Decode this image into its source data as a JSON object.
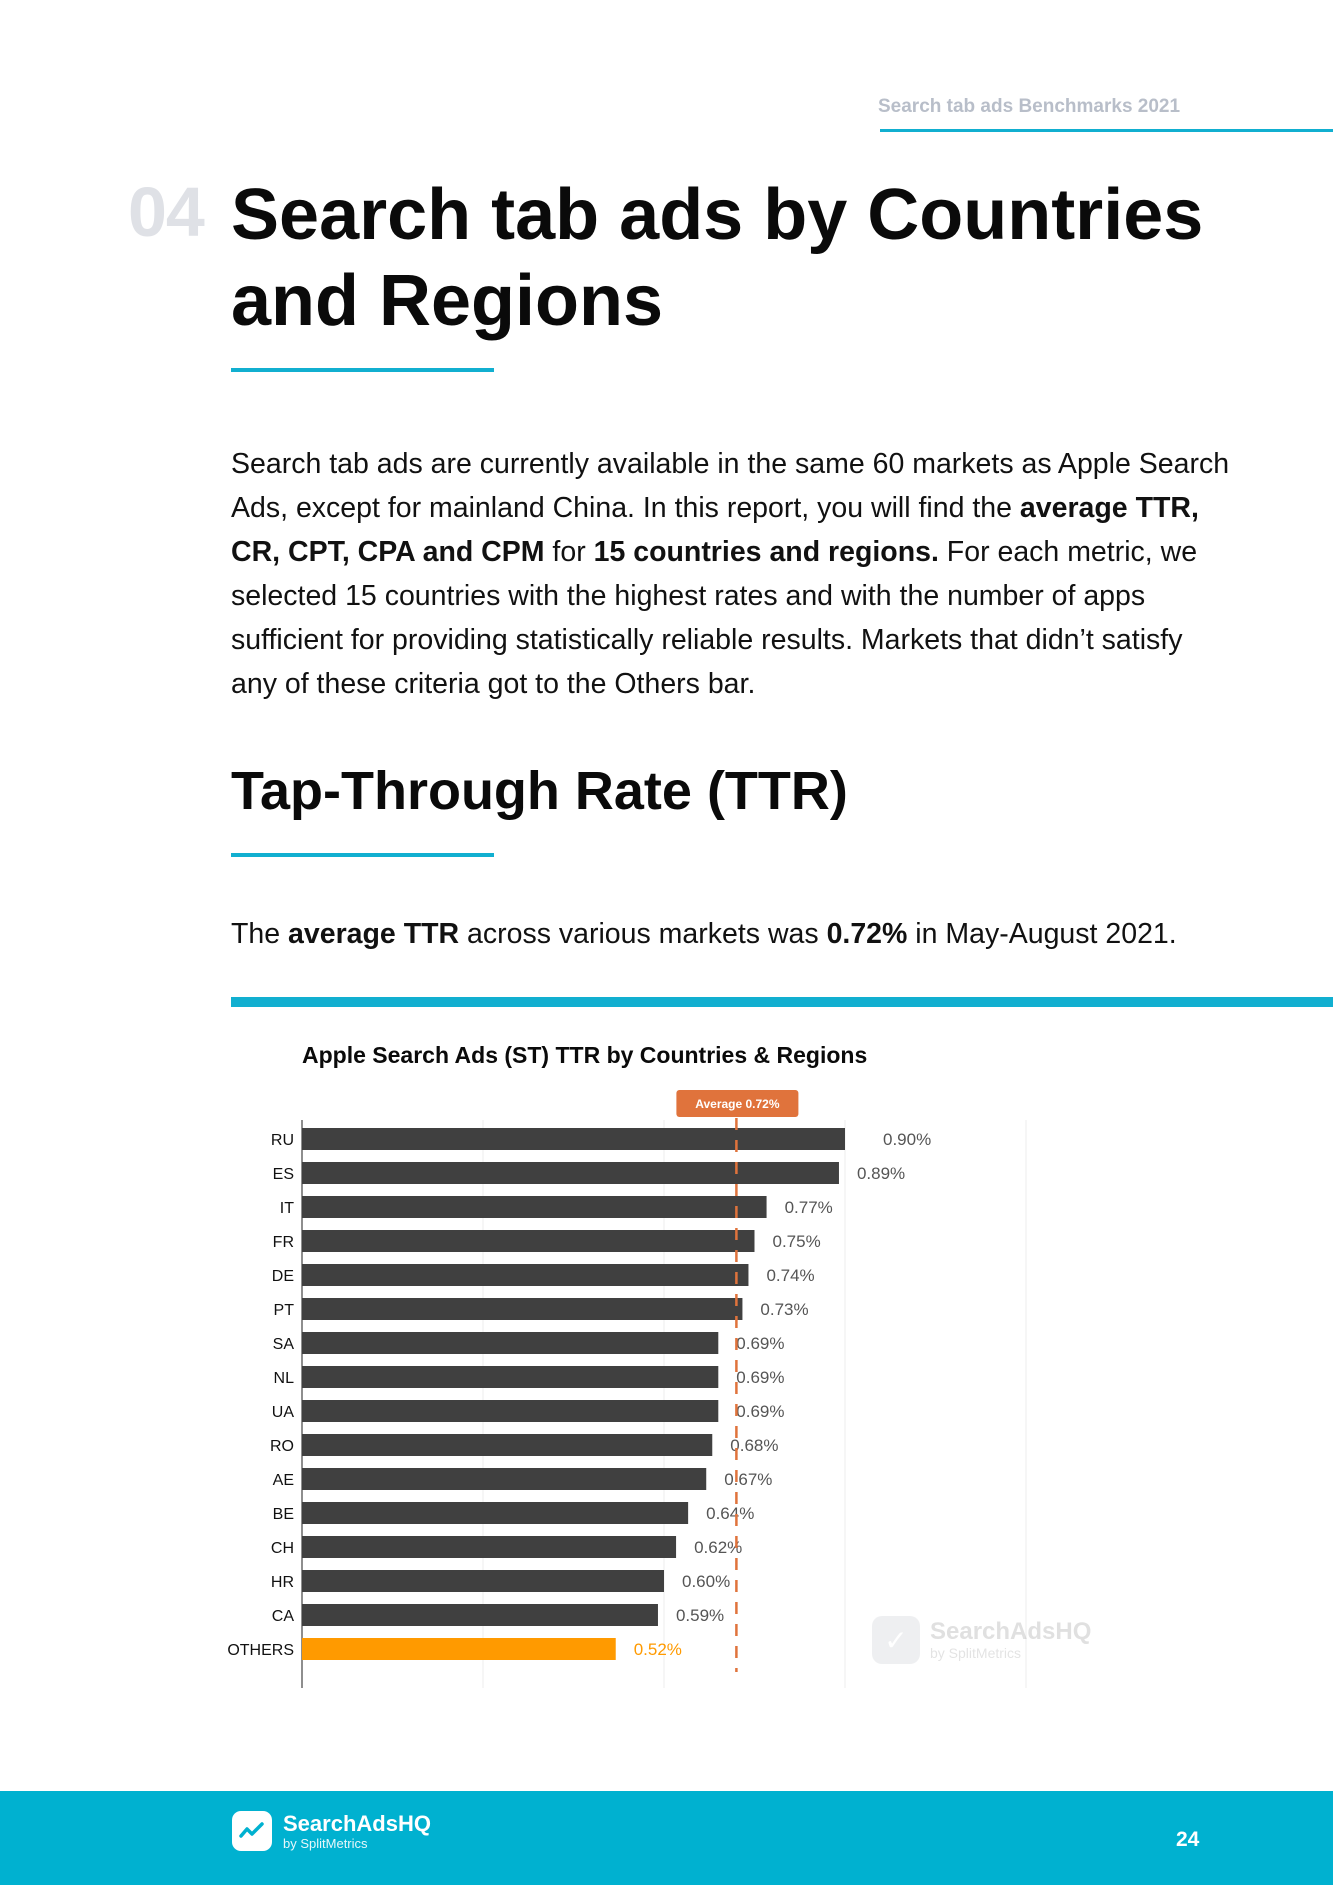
{
  "header": {
    "running_title": "Search tab ads Benchmarks 2021"
  },
  "section": {
    "number": "04",
    "title": "Search tab ads by Countries and Regions"
  },
  "intro": {
    "p1": "Search tab ads are currently available in the same 60 markets as Apple Search Ads, except for mainland China. In this report, you will find the ",
    "b1": "average TTR, CR, CPT, CPA and CPM",
    "p2": " for ",
    "b2": "15 countries and regions.",
    "p3": " For each metric, we selected 15 countries with the highest rates and with the number of apps sufficient for providing statistically reliable results. Markets that didn’t satisfy any of these criteria got to the Others bar."
  },
  "subsection": {
    "title": "Tap-Through Rate (TTR)"
  },
  "summary": {
    "t1": "The ",
    "b1": "average TTR",
    "t2": " across various markets was ",
    "b2": "0.72%",
    "t3": " in May-August 2021."
  },
  "chart_data": {
    "type": "bar",
    "orientation": "horizontal",
    "title": "Apple Search Ads (ST) TTR by Countries & Regions",
    "categories": [
      "RU",
      "ES",
      "IT",
      "FR",
      "DE",
      "PT",
      "SA",
      "NL",
      "UA",
      "RO",
      "AE",
      "BE",
      "CH",
      "HR",
      "CA",
      "OTHERS"
    ],
    "values": [
      0.9,
      0.89,
      0.77,
      0.75,
      0.74,
      0.73,
      0.69,
      0.69,
      0.69,
      0.68,
      0.67,
      0.64,
      0.62,
      0.6,
      0.59,
      0.52
    ],
    "labels": [
      "0.90%",
      "0.89%",
      "0.77%",
      "0.75%",
      "0.74%",
      "0.73%",
      "0.69%",
      "0.69%",
      "0.69%",
      "0.68%",
      "0.67%",
      "0.64%",
      "0.62%",
      "0.60%",
      "0.59%",
      "0.52%"
    ],
    "highlight_category": "OTHERS",
    "average": {
      "value": 0.72,
      "label": "Average 0.72%"
    },
    "xlim": [
      0,
      1.2
    ],
    "grid": true,
    "colors": {
      "bar": "#404040",
      "highlight": "#ff9a00",
      "average": "#e0733c",
      "label": "#555555",
      "grid": "#ececec"
    }
  },
  "watermark": {
    "name": "SearchAdsHQ",
    "sub": "by SplitMetrics"
  },
  "footer": {
    "brand": "SearchAdsHQ",
    "sub": "by SplitMetrics",
    "page_number": "24"
  }
}
